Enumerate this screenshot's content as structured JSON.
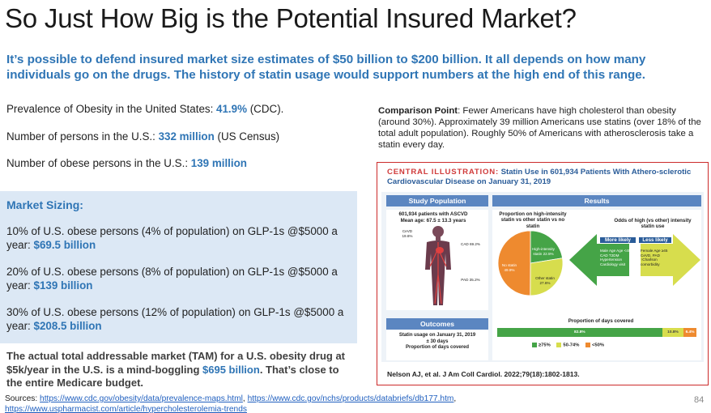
{
  "title": "So Just How Big is the Potential Insured Market?",
  "subtitle": "It’s possible to defend insured market size estimates of $50 billion to $200 billion. It all depends on how many individuals go on the drugs. The history of statin usage would support numbers at the high end of this range.",
  "stats": [
    {
      "label": "Prevalence of Obesity in the United States: ",
      "value": "41.9%",
      "suffix": " (CDC)."
    },
    {
      "label": "Number of persons in the U.S.: ",
      "value": "332 million",
      "suffix": " (US Census)"
    },
    {
      "label": "Number of obese persons in the U.S.: ",
      "value": "139 million",
      "suffix": ""
    }
  ],
  "market_sizing": {
    "title": "Market Sizing:",
    "items": [
      {
        "text": "10% of U.S. obese persons (4% of population) on GLP-1s @$5000 a year: ",
        "value": "$69.5 billion"
      },
      {
        "text": "20% of U.S. obese persons (8% of population) on GLP-1s @$5000 a year: ",
        "value": "$139 billion"
      },
      {
        "text": "30% of U.S. obese persons (12% of population) on GLP-1s @$5000 a year: ",
        "value": "$208.5 billion"
      }
    ]
  },
  "tam": {
    "text_before": "The actual total addressable market (TAM) for a U.S. obesity drug at $5k/year in the U.S. is a mind-boggling ",
    "value": "$695 billion",
    "text_after": ". That’s close to the entire Medicare budget."
  },
  "comparison": {
    "label": "Comparison Point",
    "text": ": Fewer Americans have high cholesterol than obesity (around 30%). Approximately 39 million Americans use statins (over 18% of the total adult population). Roughly 50% of Americans with atherosclerosis take a statin every day."
  },
  "illustration": {
    "title_label": "CENTRAL ILLUSTRATION:",
    "title_text": " Statin Use in 601,934 Patients With Athero-sclerotic Cardiovascular Disease on January 31, 2019",
    "study_population": "Study Population",
    "patients_line1": "601,934 patients with ASCVD",
    "patients_line2": "Mean age: 67.5 ± 13.3 years",
    "cevd": "CeVD 19.6%",
    "cad": "CAD 69.2%",
    "pad": "PAD 35.2%",
    "outcomes": "Outcomes",
    "outcome_line1": "Statin usage on January 31, 2019",
    "outcome_line2": "± 30 days",
    "outcome_line3": "Proportion of days covered",
    "results": "Results",
    "proportion_title": "Proportion on high-intensity statin vs other statin vs no statin",
    "odds_title": "Odds of high (vs other) intensity statin use",
    "more_likely": "More likely",
    "less_likely": "Less likely",
    "more_factors": "Male Age Age <45 CAD T2DM Hypertension Cardiology visit",
    "less_factors": "Female Age ≥45 CeVD, PAD ↑Charlson comorbidity",
    "pdc_title": "Proportion of days covered",
    "legend": [
      "≥75%",
      "50-74%",
      "<50%"
    ],
    "citation": "Nelson AJ, et al. J Am Coll Cardiol. 2022;79(18):1802-1813."
  },
  "chart_data": {
    "type": "pie",
    "title": "Proportion on high-intensity statin vs other statin vs no statin",
    "slices": [
      {
        "name": "High-intensity statin",
        "label": "High-intensity statin 22.5%",
        "value": 22.5,
        "color": "#45a447"
      },
      {
        "name": "Other statin",
        "label": "Other statin 27.6%",
        "value": 27.6,
        "color": "#d7dd4d"
      },
      {
        "name": "No statin",
        "label": "No statin 49.9%",
        "value": 49.9,
        "color": "#ee8a2f"
      }
    ],
    "pdc_bar": {
      "title": "Proportion of days covered",
      "segments": [
        {
          "name": "≥75%",
          "label": "82.8%",
          "value": 82.8,
          "color": "#45a447"
        },
        {
          "name": "50-74%",
          "label": "10.8%",
          "value": 10.8,
          "color": "#d7dd4d"
        },
        {
          "name": "<50%",
          "label": "6.4%",
          "value": 6.4,
          "color": "#ee8a2f"
        }
      ]
    }
  },
  "sources": {
    "label": "Sources: ",
    "links": [
      "https://www.cdc.gov/obesity/data/prevalence-maps.html",
      "https://www.cdc.gov/nchs/products/databriefs/db177.htm",
      "https://www.uspharmacist.com/article/hypercholesterolemia-trends"
    ]
  },
  "page_number": "84",
  "colors": {
    "accent": "#2f75b5",
    "border": "#cc2a2a",
    "header": "#5b86c1"
  }
}
